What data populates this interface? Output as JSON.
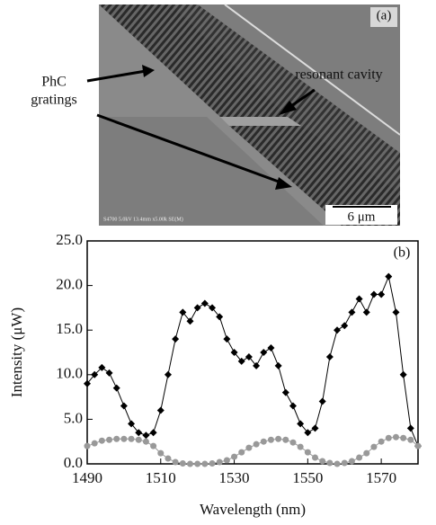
{
  "image_panel": {
    "label": "(a)",
    "cavity_label": "resonant cavity",
    "grating_label_1": "PhC",
    "grating_label_2": "gratings",
    "scale_bar": "6 μm",
    "info": "S4700 5.0kV 13.4mm x5.00k SE(M)"
  },
  "chart_data": {
    "type": "scatter",
    "panel_label": "(b)",
    "x_label": "Wavelength (nm)",
    "y_label": "Intensity (μW)",
    "x": [
      1490,
      1492,
      1494,
      1496,
      1498,
      1500,
      1502,
      1504,
      1506,
      1508,
      1510,
      1512,
      1514,
      1516,
      1518,
      1520,
      1522,
      1524,
      1526,
      1528,
      1530,
      1532,
      1534,
      1536,
      1538,
      1540,
      1542,
      1544,
      1546,
      1548,
      1550,
      1552,
      1554,
      1556,
      1558,
      1560,
      1562,
      1564,
      1566,
      1568,
      1570,
      1572,
      1574,
      1576,
      1578,
      1580
    ],
    "series": [
      {
        "color": "#000000",
        "marker": "diamond",
        "values": [
          9,
          10,
          10.8,
          10.2,
          8.5,
          6.5,
          4.5,
          3.5,
          3.2,
          3.5,
          6,
          10,
          14,
          17,
          16,
          17.5,
          18,
          17.5,
          16.5,
          14,
          12.5,
          11.5,
          12,
          11,
          12.5,
          13,
          11,
          8,
          6.5,
          4.5,
          3.5,
          4,
          7,
          12,
          15,
          15.5,
          17,
          18.5,
          17,
          19,
          19,
          21,
          17,
          10,
          4,
          2
        ]
      },
      {
        "color": "#999999",
        "marker": "circle",
        "values": [
          2,
          2.3,
          2.6,
          2.7,
          2.8,
          2.8,
          2.8,
          2.7,
          2.5,
          2,
          1.2,
          0.6,
          0.2,
          0.05,
          0,
          0,
          0,
          0.05,
          0.2,
          0.4,
          0.8,
          1.3,
          1.8,
          2.2,
          2.5,
          2.7,
          2.8,
          2.7,
          2.4,
          1.9,
          1.3,
          0.7,
          0.3,
          0.1,
          0,
          0.1,
          0.3,
          0.7,
          1.2,
          1.9,
          2.5,
          2.9,
          3,
          2.9,
          2.7,
          2
        ]
      }
    ],
    "xlim": [
      1490,
      1580
    ],
    "xticks": [
      1490,
      1510,
      1530,
      1550,
      1570
    ],
    "ylim": [
      0,
      25
    ],
    "yticks": [
      {
        "value": 0,
        "label": "0.0"
      },
      {
        "value": 5,
        "label": "5.0"
      },
      {
        "value": 10,
        "label": "10.0"
      },
      {
        "value": 15,
        "label": "15.0"
      },
      {
        "value": 20,
        "label": "20.0"
      },
      {
        "value": 25,
        "label": "25.0"
      }
    ]
  }
}
